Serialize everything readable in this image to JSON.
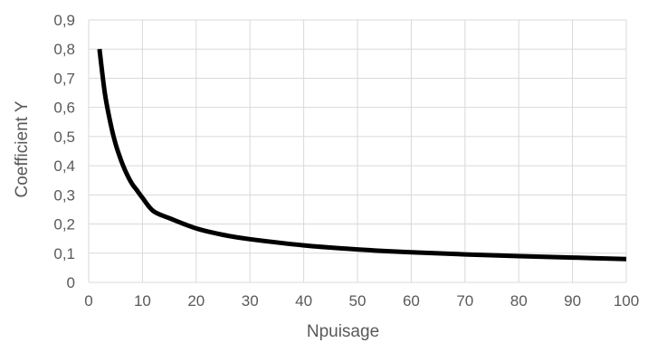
{
  "chart_data": {
    "type": "line",
    "xlabel": "Npuisage",
    "ylabel": "Coefficient Y",
    "xlim": [
      0,
      100
    ],
    "ylim": [
      0,
      0.9
    ],
    "x_ticks": [
      0,
      10,
      20,
      30,
      40,
      50,
      60,
      70,
      80,
      90,
      100
    ],
    "x_tick_labels": [
      "0",
      "10",
      "20",
      "30",
      "40",
      "50",
      "60",
      "70",
      "80",
      "90",
      "100"
    ],
    "y_ticks": [
      0,
      0.1,
      0.2,
      0.3,
      0.4,
      0.5,
      0.6,
      0.7,
      0.8,
      0.9
    ],
    "y_tick_labels": [
      "0",
      "0,1",
      "0,2",
      "0,3",
      "0,4",
      "0,5",
      "0,6",
      "0,7",
      "0,8",
      "0,9"
    ],
    "grid": "vertical and horizontal",
    "legend": "none",
    "series": [
      {
        "color": "#000000",
        "x": [
          2,
          3,
          4,
          5,
          6,
          7,
          8,
          9,
          10,
          12,
          15,
          20,
          25,
          30,
          40,
          50,
          60,
          70,
          80,
          90,
          100
        ],
        "y": [
          0.8,
          0.65,
          0.55,
          0.475,
          0.42,
          0.375,
          0.34,
          0.315,
          0.29,
          0.245,
          0.22,
          0.185,
          0.163,
          0.148,
          0.127,
          0.113,
          0.103,
          0.096,
          0.09,
          0.085,
          0.08
        ]
      }
    ]
  }
}
